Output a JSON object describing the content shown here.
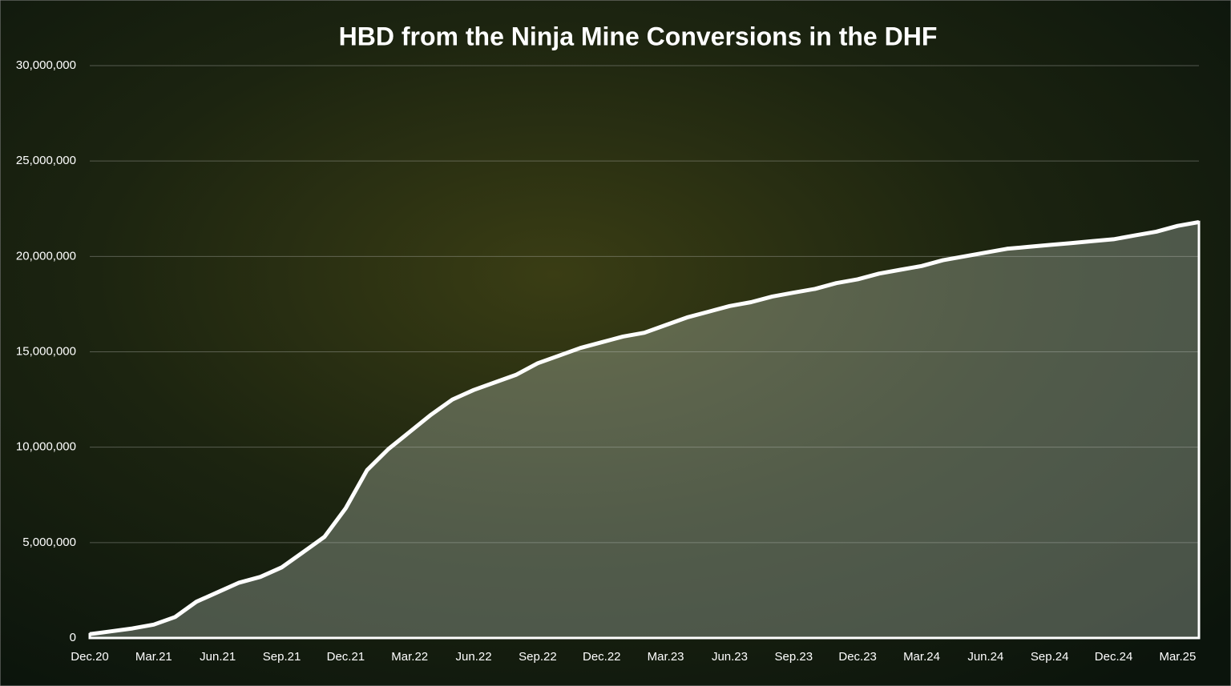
{
  "chart_data": {
    "type": "area",
    "title": "HBD from the Ninja Mine Conversions in the DHF",
    "categories": [
      "Dec.20",
      null,
      null,
      "Mar.21",
      null,
      null,
      "Jun.21",
      null,
      null,
      "Sep.21",
      null,
      null,
      "Dec.21",
      null,
      null,
      "Mar.22",
      null,
      null,
      "Jun.22",
      null,
      null,
      "Sep.22",
      null,
      null,
      "Dec.22",
      null,
      null,
      "Mar.23",
      null,
      null,
      "Jun.23",
      null,
      null,
      "Sep.23",
      null,
      null,
      "Dec.23",
      null,
      null,
      "Mar.24",
      null,
      null,
      "Jun.24",
      null,
      null,
      "Sep.24",
      null,
      null,
      "Dec.24",
      null,
      null,
      "Mar.25",
      null
    ],
    "values": [
      200000,
      350000,
      500000,
      700000,
      1100000,
      1900000,
      2400000,
      2900000,
      3200000,
      3700000,
      4500000,
      5300000,
      6800000,
      8800000,
      9900000,
      10800000,
      11700000,
      12500000,
      13000000,
      13400000,
      13800000,
      14400000,
      14800000,
      15200000,
      15500000,
      15800000,
      16000000,
      16400000,
      16800000,
      17100000,
      17400000,
      17600000,
      17900000,
      18100000,
      18300000,
      18600000,
      18800000,
      19100000,
      19300000,
      19500000,
      19800000,
      20000000,
      20200000,
      20400000,
      20500000,
      20600000,
      20700000,
      20800000,
      20900000,
      21100000,
      21300000,
      21600000,
      21800000
    ],
    "color": "#ffffff",
    "ylim": [
      0,
      30000000
    ],
    "yticks": [
      0,
      {
        "value": 5000000,
        "label": "5,000,000"
      },
      {
        "value": 10000000,
        "label": "10,000,000"
      },
      {
        "value": 15000000,
        "label": "15,000,000"
      },
      {
        "value": 20000000,
        "label": "20,000,000"
      },
      {
        "value": 25000000,
        "label": "25,000,000"
      },
      {
        "value": 30000000,
        "label": "30,000,000"
      }
    ],
    "grid": true
  }
}
